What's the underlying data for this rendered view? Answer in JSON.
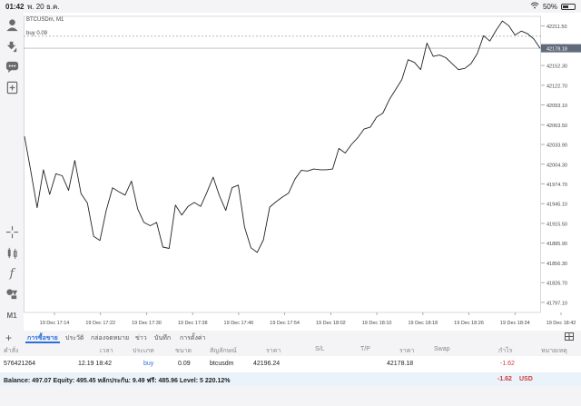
{
  "status_bar": {
    "time": "01:42",
    "date": "พ. 20 ธ.ค.",
    "battery": "50%",
    "battery_level": 0.5
  },
  "chart": {
    "symbol": "BTCUSDm, M1",
    "trade_line_label": "buy 0.09",
    "current_price": "42178.18",
    "price_levels": [
      "42211.50",
      "42182.20",
      "42152.30",
      "42122.70",
      "42093.10",
      "42063.50",
      "42033.90",
      "42004.30",
      "41974.70",
      "41945.10",
      "41915.50",
      "41885.90",
      "41856.30",
      "41826.70",
      "41797.10"
    ],
    "time_labels": [
      "19 Dec 17:14",
      "19 Dec 17:22",
      "19 Dec 17:30",
      "19 Dec 17:38",
      "19 Dec 17:46",
      "19 Dec 17:54",
      "19 Dec 18:02",
      "19 Dec 18:10",
      "19 Dec 18:18",
      "19 Dec 18:26",
      "19 Dec 18:34",
      "19 Dec 18:42"
    ],
    "colors": {
      "line": "#222222",
      "grid": "#ececec",
      "trade_line": "#9aa0a6",
      "price_tag": "#5f6b7a"
    }
  },
  "chart_data": {
    "type": "line",
    "title": "BTCUSDm, M1",
    "xlabel": "",
    "ylabel": "",
    "ylim": [
      41782,
      42226
    ],
    "series": [
      {
        "values": [
          42046,
          41994,
          41939,
          41996,
          41959,
          41990,
          41987,
          41965,
          42010,
          41960,
          41946,
          41896,
          41890,
          41935,
          41969,
          41963,
          41958,
          41979,
          41937,
          41917,
          41912,
          41917,
          41880,
          41878,
          41943,
          41928,
          41941,
          41947,
          41941,
          41962,
          41985,
          41957,
          41935,
          41969,
          41973,
          41910,
          41879,
          41872,
          41891,
          41940,
          41948,
          41955,
          41961,
          41982,
          41995,
          41994,
          41997,
          41996,
          41996,
          41997,
          42028,
          42021,
          42034,
          42044,
          42057,
          42060,
          42075,
          42081,
          42101,
          42116,
          42131,
          42161,
          42157,
          42146,
          42186,
          42166,
          42168,
          42164,
          42155,
          42146,
          42148,
          42155,
          42170,
          42197,
          42189,
          42205,
          42219,
          42212,
          42198,
          42204,
          42200,
          42192,
          42178
        ]
      }
    ]
  },
  "tabs": [
    {
      "label": "การซื้อขาย",
      "active": true
    },
    {
      "label": "ประวัติ",
      "active": false
    },
    {
      "label": "กล่องจดหมาย",
      "active": false
    },
    {
      "label": "ข่าว",
      "active": false
    },
    {
      "label": "บันทึก",
      "active": false
    },
    {
      "label": "การตั้งค่า",
      "active": false
    }
  ],
  "table": {
    "headers": [
      "คำสั่ง",
      "เวลา",
      "ประเภท",
      "ขนาด",
      "สัญลักษณ์",
      "ราคา",
      "S/L",
      "T/P",
      "ราคา",
      "Swap",
      "กำไร",
      "หมายเหตุ"
    ],
    "row": {
      "order": "576421264",
      "time": "12.19 18:42",
      "type": "buy",
      "size": "0.09",
      "symbol": "btcusdm",
      "open_price": "42196.24",
      "sl": "",
      "tp": "",
      "current_price": "42178.18",
      "swap": "",
      "profit": "-1.62",
      "comment": ""
    }
  },
  "balance_bar": {
    "text": "Balance: 497.07 Equity: 495.45 หลักประกัน: 9.49 ฟรี: 485.96 Level: 5 220.12%",
    "profit": "-1.62",
    "currency": "USD"
  }
}
